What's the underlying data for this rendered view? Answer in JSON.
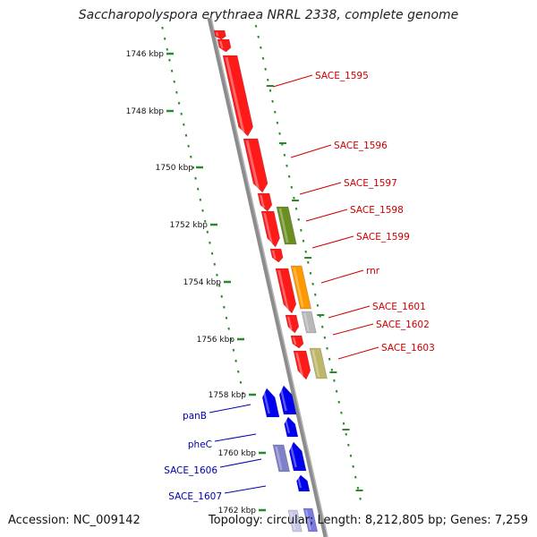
{
  "title": "Saccharopolyspora erythraea NRRL 2338, complete genome",
  "footer": {
    "accession": "Accession: NC_009142",
    "summary": "Topology: circular; Length: 8,212,805 bp; Genes: 7,259"
  },
  "colors": {
    "backbone": "#808080",
    "tick": "#2a8a2a",
    "red_gene": "#ff1a1a",
    "blue_gene": "#0000ee",
    "label_red": "#cc0000",
    "label_blue": "#0000aa",
    "olive": "#6b8e23",
    "orange": "#ff9900",
    "gray": "#b8b8b8",
    "khaki": "#bdb76b"
  },
  "ruler": [
    {
      "label": "1746 kbp"
    },
    {
      "label": "1748 kbp"
    },
    {
      "label": "1750 kbp"
    },
    {
      "label": "1752 kbp"
    },
    {
      "label": "1754 kbp"
    },
    {
      "label": "1756 kbp"
    },
    {
      "label": "1758 kbp"
    },
    {
      "label": "1760 kbp"
    },
    {
      "label": "1762 kbp"
    }
  ],
  "genes": [
    {
      "label": "SACE_1595",
      "side": "right",
      "color": "red"
    },
    {
      "label": "SACE_1596",
      "side": "right",
      "color": "red"
    },
    {
      "label": "SACE_1597",
      "side": "right",
      "color": "red"
    },
    {
      "label": "SACE_1598",
      "side": "right",
      "color": "red"
    },
    {
      "label": "SACE_1599",
      "side": "right",
      "color": "red"
    },
    {
      "label": "rnr",
      "side": "right",
      "color": "red"
    },
    {
      "label": "SACE_1601",
      "side": "right",
      "color": "red"
    },
    {
      "label": "SACE_1602",
      "side": "right",
      "color": "red"
    },
    {
      "label": "SACE_1603",
      "side": "right",
      "color": "red"
    },
    {
      "label": "panB",
      "side": "left",
      "color": "blue"
    },
    {
      "label": "pheC",
      "side": "left",
      "color": "blue"
    },
    {
      "label": "SACE_1606",
      "side": "left",
      "color": "blue"
    },
    {
      "label": "SACE_1607",
      "side": "left",
      "color": "blue"
    }
  ]
}
